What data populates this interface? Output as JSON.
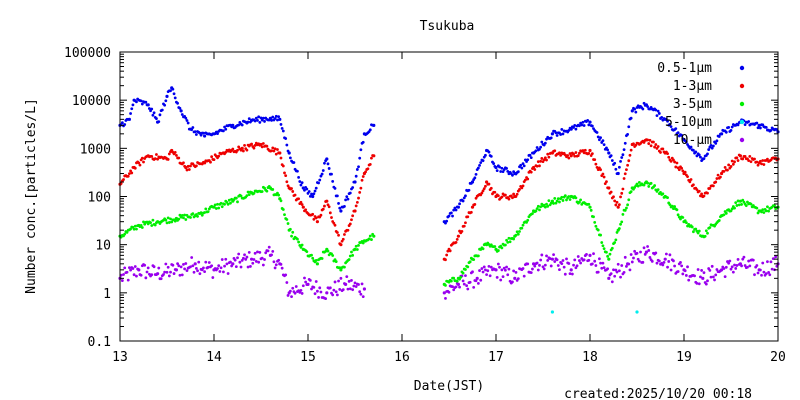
{
  "chart_data": {
    "type": "scatter",
    "title": "Tsukuba",
    "xlabel": "Date(JST)",
    "ylabel": "Number conc.[particles/L]",
    "yscale": "log",
    "xlim": [
      13,
      20
    ],
    "ylim": [
      0.1,
      100000
    ],
    "x_ticks": [
      "13",
      "14",
      "15",
      "16",
      "17",
      "18",
      "19",
      "20"
    ],
    "y_ticks": [
      "0.1",
      "1",
      "10",
      "100",
      "1000",
      "10000",
      "100000"
    ],
    "footer": "created:2025/10/20 00:18",
    "legend_position": "top-right",
    "gap": [
      15.75,
      16.42
    ],
    "series": [
      {
        "name": "0.5-1μm",
        "color": "#0000ee",
        "points": [
          [
            13.0,
            3000
          ],
          [
            13.1,
            4000
          ],
          [
            13.15,
            10000
          ],
          [
            13.3,
            8000
          ],
          [
            13.4,
            3500
          ],
          [
            13.5,
            12000
          ],
          [
            13.55,
            18000
          ],
          [
            13.65,
            6000
          ],
          [
            13.75,
            2500
          ],
          [
            13.9,
            1800
          ],
          [
            14.0,
            2000
          ],
          [
            14.2,
            3000
          ],
          [
            14.4,
            3800
          ],
          [
            14.6,
            4200
          ],
          [
            14.7,
            4000
          ],
          [
            14.8,
            800
          ],
          [
            14.95,
            150
          ],
          [
            15.05,
            100
          ],
          [
            15.2,
            600
          ],
          [
            15.35,
            50
          ],
          [
            15.5,
            200
          ],
          [
            15.6,
            2000
          ],
          [
            15.7,
            3000
          ],
          [
            16.45,
            30
          ],
          [
            16.6,
            60
          ],
          [
            16.75,
            200
          ],
          [
            16.9,
            900
          ],
          [
            17.0,
            400
          ],
          [
            17.2,
            300
          ],
          [
            17.4,
            800
          ],
          [
            17.6,
            2000
          ],
          [
            17.8,
            2500
          ],
          [
            18.0,
            3500
          ],
          [
            18.2,
            800
          ],
          [
            18.3,
            300
          ],
          [
            18.45,
            6000
          ],
          [
            18.6,
            8000
          ],
          [
            18.8,
            4000
          ],
          [
            19.0,
            1500
          ],
          [
            19.2,
            600
          ],
          [
            19.4,
            2000
          ],
          [
            19.6,
            3500
          ],
          [
            19.8,
            3000
          ],
          [
            20.0,
            2200
          ]
        ]
      },
      {
        "name": "1-3μm",
        "color": "#ee0000",
        "points": [
          [
            13.0,
            180
          ],
          [
            13.15,
            400
          ],
          [
            13.3,
            700
          ],
          [
            13.5,
            600
          ],
          [
            13.55,
            900
          ],
          [
            13.7,
            400
          ],
          [
            13.9,
            500
          ],
          [
            14.1,
            800
          ],
          [
            14.3,
            1000
          ],
          [
            14.5,
            1200
          ],
          [
            14.7,
            800
          ],
          [
            14.8,
            150
          ],
          [
            14.95,
            60
          ],
          [
            15.1,
            30
          ],
          [
            15.2,
            80
          ],
          [
            15.35,
            10
          ],
          [
            15.5,
            50
          ],
          [
            15.6,
            300
          ],
          [
            15.7,
            700
          ],
          [
            16.45,
            5
          ],
          [
            16.6,
            15
          ],
          [
            16.75,
            60
          ],
          [
            16.9,
            200
          ],
          [
            17.0,
            100
          ],
          [
            17.2,
            100
          ],
          [
            17.4,
            400
          ],
          [
            17.6,
            800
          ],
          [
            17.8,
            700
          ],
          [
            18.0,
            900
          ],
          [
            18.2,
            150
          ],
          [
            18.3,
            60
          ],
          [
            18.45,
            1200
          ],
          [
            18.6,
            1500
          ],
          [
            18.8,
            800
          ],
          [
            19.0,
            300
          ],
          [
            19.2,
            100
          ],
          [
            19.4,
            300
          ],
          [
            19.6,
            700
          ],
          [
            19.8,
            500
          ],
          [
            20.0,
            600
          ]
        ]
      },
      {
        "name": "3-5μm",
        "color": "#00ee00",
        "points": [
          [
            13.0,
            15
          ],
          [
            13.2,
            25
          ],
          [
            13.4,
            30
          ],
          [
            13.6,
            35
          ],
          [
            13.8,
            40
          ],
          [
            14.0,
            60
          ],
          [
            14.2,
            80
          ],
          [
            14.4,
            120
          ],
          [
            14.6,
            150
          ],
          [
            14.7,
            90
          ],
          [
            14.8,
            20
          ],
          [
            14.95,
            8
          ],
          [
            15.1,
            4
          ],
          [
            15.2,
            8
          ],
          [
            15.35,
            3
          ],
          [
            15.5,
            8
          ],
          [
            15.6,
            12
          ],
          [
            15.7,
            15
          ],
          [
            16.45,
            1.5
          ],
          [
            16.6,
            2
          ],
          [
            16.75,
            5
          ],
          [
            16.9,
            10
          ],
          [
            17.0,
            8
          ],
          [
            17.2,
            15
          ],
          [
            17.4,
            50
          ],
          [
            17.6,
            80
          ],
          [
            17.8,
            100
          ],
          [
            18.0,
            60
          ],
          [
            18.2,
            5
          ],
          [
            18.3,
            20
          ],
          [
            18.45,
            150
          ],
          [
            18.6,
            200
          ],
          [
            18.8,
            100
          ],
          [
            19.0,
            30
          ],
          [
            19.2,
            15
          ],
          [
            19.4,
            40
          ],
          [
            19.6,
            80
          ],
          [
            19.8,
            50
          ],
          [
            20.0,
            60
          ]
        ]
      },
      {
        "name": "5-10μm",
        "color": "#00eeee",
        "points": [
          [
            17.6,
            0.4
          ],
          [
            18.5,
            0.4
          ]
        ]
      },
      {
        "name": "10-μm",
        "color": "#9900ee",
        "points": [
          [
            13.0,
            2
          ],
          [
            13.2,
            3
          ],
          [
            13.4,
            2.5
          ],
          [
            13.6,
            3
          ],
          [
            13.8,
            4
          ],
          [
            14.0,
            3
          ],
          [
            14.2,
            4
          ],
          [
            14.4,
            5
          ],
          [
            14.6,
            6
          ],
          [
            14.7,
            4
          ],
          [
            14.8,
            1
          ],
          [
            15.0,
            1.5
          ],
          [
            15.2,
            1
          ],
          [
            15.4,
            1.5
          ],
          [
            15.6,
            1.2
          ],
          [
            16.45,
            1
          ],
          [
            16.6,
            1.5
          ],
          [
            16.8,
            2
          ],
          [
            17.0,
            3
          ],
          [
            17.2,
            2
          ],
          [
            17.4,
            4
          ],
          [
            17.6,
            5
          ],
          [
            17.8,
            3
          ],
          [
            18.0,
            6
          ],
          [
            18.2,
            2
          ],
          [
            18.4,
            4
          ],
          [
            18.6,
            7
          ],
          [
            18.8,
            5
          ],
          [
            19.0,
            3
          ],
          [
            19.2,
            2
          ],
          [
            19.4,
            3
          ],
          [
            19.6,
            4
          ],
          [
            19.8,
            3
          ],
          [
            20.0,
            4
          ]
        ]
      }
    ]
  }
}
